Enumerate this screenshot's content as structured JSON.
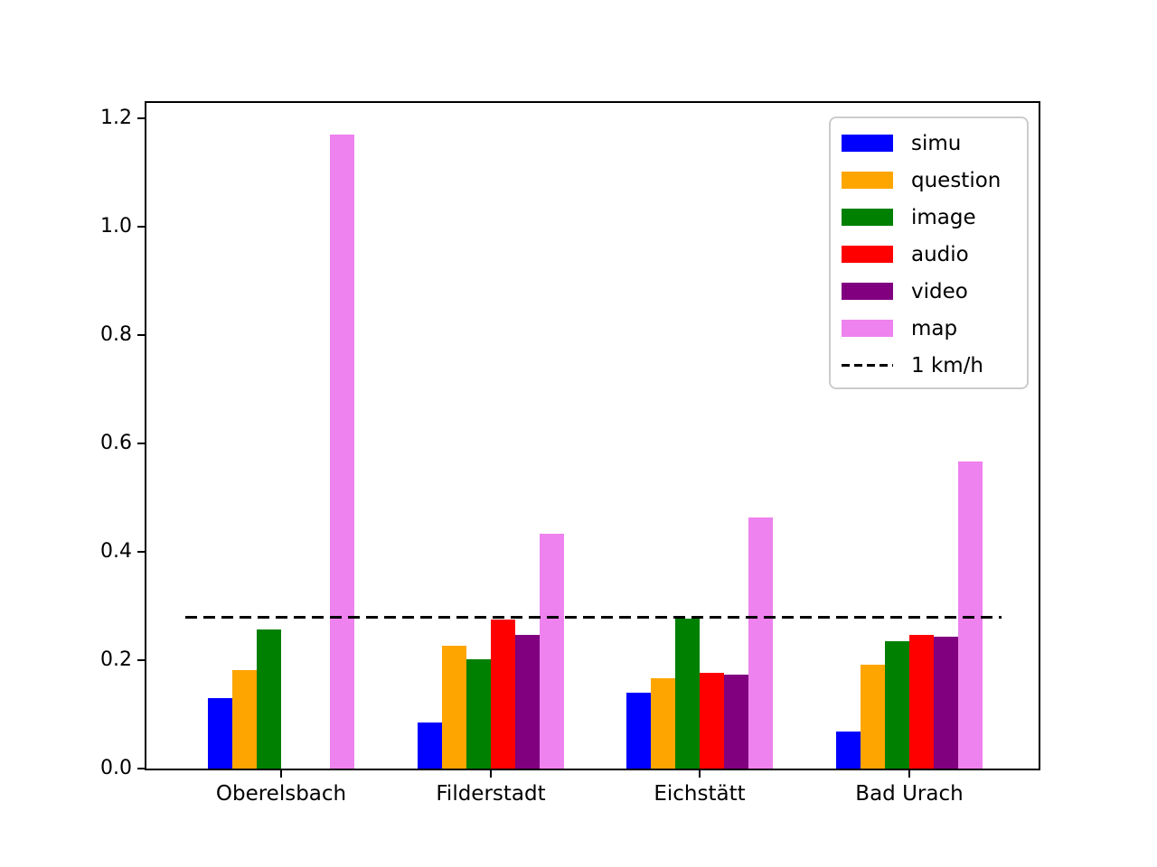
{
  "chart_data": {
    "type": "bar",
    "title": "",
    "xlabel": "",
    "ylabel": "",
    "grid": false,
    "legend_position": "upper right",
    "categories": [
      "Oberelsbach",
      "Filderstadt",
      "Eichstätt",
      "Bad Urach"
    ],
    "series": [
      {
        "name": "simu",
        "color": "#0000ff",
        "values": [
          0.13,
          0.085,
          0.14,
          0.068
        ]
      },
      {
        "name": "question",
        "color": "#ffa500",
        "values": [
          0.181,
          0.226,
          0.166,
          0.192
        ]
      },
      {
        "name": "image",
        "color": "#008000",
        "values": [
          0.257,
          0.201,
          0.276,
          0.235
        ]
      },
      {
        "name": "audio",
        "color": "#ff0000",
        "values": [
          0.0,
          0.275,
          0.176,
          0.246
        ]
      },
      {
        "name": "video",
        "color": "#800080",
        "values": [
          0.0,
          0.246,
          0.174,
          0.244
        ]
      },
      {
        "name": "map",
        "color": "#ee82ee",
        "values": [
          1.17,
          0.433,
          0.464,
          0.566
        ]
      }
    ],
    "reference_line": {
      "label": "1 km/h",
      "value": 0.2778,
      "style": "dashed",
      "color": "#000000"
    },
    "yticks": [
      0.0,
      0.2,
      0.4,
      0.6,
      0.8,
      1.0,
      1.2
    ],
    "ytick_labels": [
      "0.0",
      "0.2",
      "0.4",
      "0.6",
      "0.8",
      "1.0",
      "1.2"
    ],
    "ylim": [
      0,
      1.2285
    ]
  }
}
